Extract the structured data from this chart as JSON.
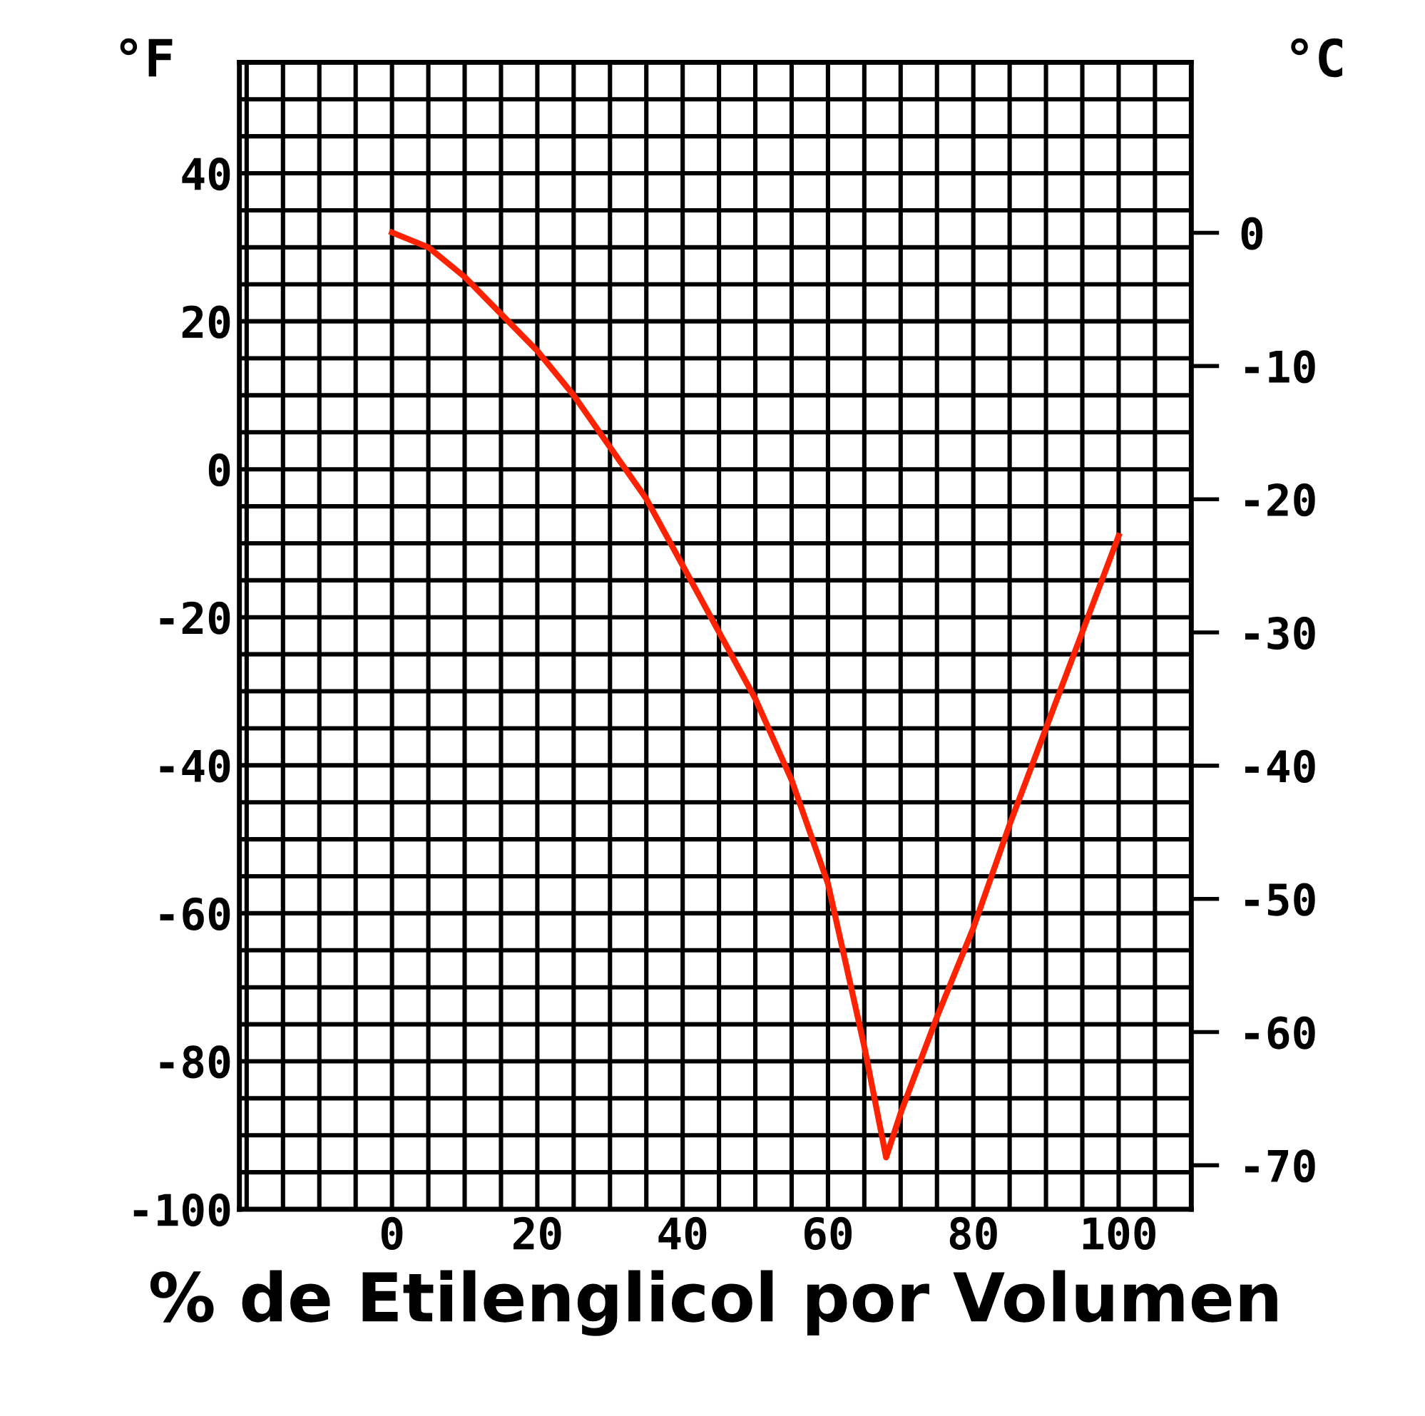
{
  "chart_data": {
    "type": "line",
    "xlabel": "% de Etilenglicol por Volumen",
    "ylabel": "°F",
    "y2label": "°C",
    "x": [
      0,
      5,
      10,
      15,
      20,
      25,
      30,
      35,
      40,
      45,
      50,
      55,
      60,
      65,
      68,
      70,
      75,
      80,
      85,
      90,
      95,
      100
    ],
    "series": [
      {
        "color": "#ff2200",
        "values": [
          32,
          30,
          26,
          21,
          16,
          10,
          3,
          -4,
          -13,
          -22,
          -31,
          -42,
          -56,
          -78,
          -93,
          -87,
          -74,
          -62,
          -48,
          -35,
          -22,
          -9
        ]
      }
    ],
    "xlim": [
      -21,
      110
    ],
    "ylim": [
      -100,
      55
    ],
    "y2lim": [
      -73.3,
      12.8
    ],
    "xticks": [
      {
        "value": -20,
        "label": null
      },
      {
        "value": -15,
        "label": null
      },
      {
        "value": -10,
        "label": null
      },
      {
        "value": -5,
        "label": null
      },
      0,
      {
        "value": 5,
        "label": null
      },
      {
        "value": 10,
        "label": null
      },
      {
        "value": 15,
        "label": null
      },
      20,
      {
        "value": 25,
        "label": null
      },
      {
        "value": 30,
        "label": null
      },
      {
        "value": 35,
        "label": null
      },
      40,
      {
        "value": 45,
        "label": null
      },
      {
        "value": 50,
        "label": null
      },
      {
        "value": 55,
        "label": null
      },
      60,
      {
        "value": 65,
        "label": null
      },
      {
        "value": 70,
        "label": null
      },
      {
        "value": 75,
        "label": null
      },
      80,
      {
        "value": 85,
        "label": null
      },
      {
        "value": 90,
        "label": null
      },
      {
        "value": 95,
        "label": null
      },
      100,
      {
        "value": 105,
        "label": null
      },
      {
        "value": 110,
        "label": null
      }
    ],
    "yticks": [
      -100,
      {
        "value": -95,
        "label": null
      },
      {
        "value": -90,
        "label": null
      },
      {
        "value": -85,
        "label": null
      },
      -80,
      {
        "value": -75,
        "label": null
      },
      {
        "value": -70,
        "label": null
      },
      {
        "value": -65,
        "label": null
      },
      -60,
      {
        "value": -55,
        "label": null
      },
      {
        "value": -50,
        "label": null
      },
      {
        "value": -45,
        "label": null
      },
      -40,
      {
        "value": -35,
        "label": null
      },
      {
        "value": -30,
        "label": null
      },
      {
        "value": -25,
        "label": null
      },
      -20,
      {
        "value": -15,
        "label": null
      },
      {
        "value": -10,
        "label": null
      },
      {
        "value": -5,
        "label": null
      },
      0,
      {
        "value": 5,
        "label": null
      },
      {
        "value": 10,
        "label": null
      },
      {
        "value": 15,
        "label": null
      },
      20,
      {
        "value": 25,
        "label": null
      },
      {
        "value": 30,
        "label": null
      },
      {
        "value": 35,
        "label": null
      },
      40,
      {
        "value": 45,
        "label": null
      },
      {
        "value": 50,
        "label": null
      },
      {
        "value": 55,
        "label": null
      }
    ],
    "y2ticks": [
      -70,
      -60,
      -50,
      -40,
      -30,
      -20,
      -10,
      0
    ],
    "grid": true,
    "legend": false,
    "marker": "none",
    "line_style": "solid"
  }
}
